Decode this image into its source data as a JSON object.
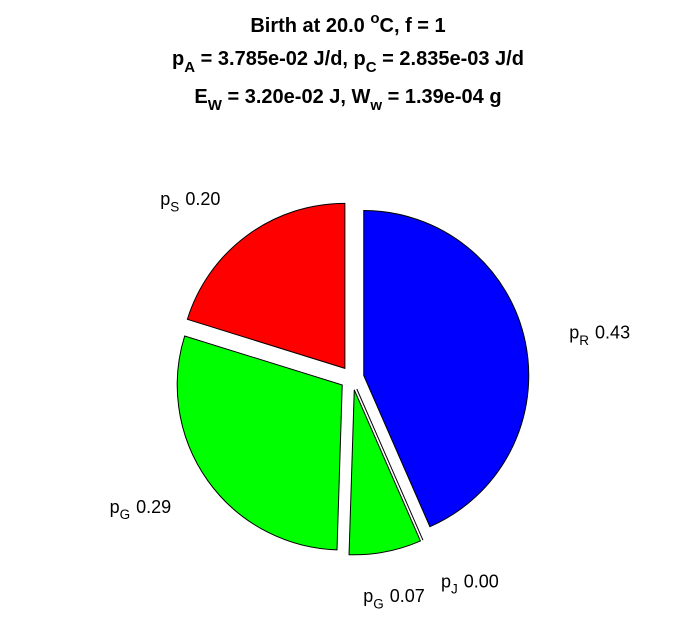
{
  "chart_data": {
    "type": "pie",
    "title": [
      [
        {
          "text": "Birth at 20.0 "
        },
        {
          "sup": "o"
        },
        {
          "text": "C, f = 1"
        }
      ],
      [
        {
          "text": "p"
        },
        {
          "sub": "A"
        },
        {
          "text": " = 3.785e-02 J/d, p"
        },
        {
          "sub": "C"
        },
        {
          "text": " = 2.835e-03 J/d"
        }
      ],
      [
        {
          "text": "E"
        },
        {
          "sub": "W"
        },
        {
          "text": " = 3.20e-02 J, W"
        },
        {
          "sub": "w"
        },
        {
          "text": " = 1.39e-04 g"
        }
      ]
    ],
    "categories": [
      [
        {
          "text": "p"
        },
        {
          "sub": "R"
        }
      ],
      [
        {
          "text": "p"
        },
        {
          "sub": "J"
        }
      ],
      [
        {
          "text": "p"
        },
        {
          "sub": "G"
        }
      ],
      [
        {
          "text": "p"
        },
        {
          "sub": "G"
        }
      ],
      [
        {
          "text": "p"
        },
        {
          "sub": "S"
        }
      ]
    ],
    "values": [
      0.43,
      0.0,
      0.07,
      0.29,
      0.2
    ],
    "value_labels": [
      "0.43",
      "0.00",
      "0.07",
      "0.29",
      "0.20"
    ],
    "colors": [
      "#0000ff",
      "#ffffff",
      "#00ff00",
      "#00ff00",
      "#ff0000"
    ]
  }
}
